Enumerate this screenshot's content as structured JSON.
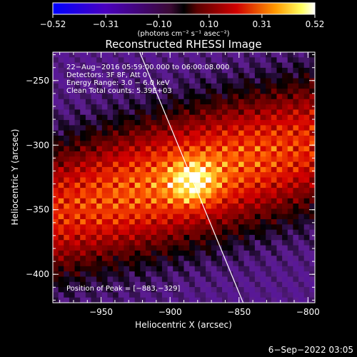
{
  "chart_data": {
    "type": "heatmap",
    "title": "Reconstructed RHESSI Image",
    "xlabel": "Heliocentric X (arcsec)",
    "ylabel": "Heliocentric Y (arcsec)",
    "xlim": [
      -985,
      -795
    ],
    "ylim": [
      -422,
      -228
    ],
    "x_ticks": [
      -950,
      -900,
      -850,
      -800
    ],
    "y_ticks": [
      -250,
      -300,
      -350,
      -400
    ],
    "x_tick_labels": [
      "−950",
      "−900",
      "−850",
      "−800"
    ],
    "y_tick_labels": [
      "−250",
      "−300",
      "−350",
      "−400"
    ],
    "colorbar": {
      "min": -0.52,
      "max": 0.52,
      "tick_values": [
        -0.52,
        -0.31,
        -0.1,
        0.1,
        0.31,
        0.52
      ],
      "tick_labels": [
        "−0.52",
        "−0.31",
        "−0.10",
        "0.10",
        "0.31",
        "0.52"
      ],
      "unit_label": "(photons cm⁻² s⁻¹ asec⁻²)"
    },
    "peak": {
      "x": -883,
      "y": -329
    },
    "limb_line": {
      "x1": -922,
      "y1": -228,
      "x2": -847,
      "y2": -422
    },
    "annotations": {
      "line1": "22−Aug−2016 05:59:00.000 to 06:00:08.000",
      "line2": "Detectors: 3F 8F, Att 0",
      "line3": "Energy Range: 3.0 − 6.0 keV",
      "line4": "Clean     Total counts: 5.39E+03",
      "peak_text": "Position of Peak = [−883,−329]"
    },
    "grid": false
  },
  "footer": {
    "date": "6−Sep−2022 03:05"
  },
  "colors": {
    "background": "#000000",
    "limb": "#ffffff"
  }
}
